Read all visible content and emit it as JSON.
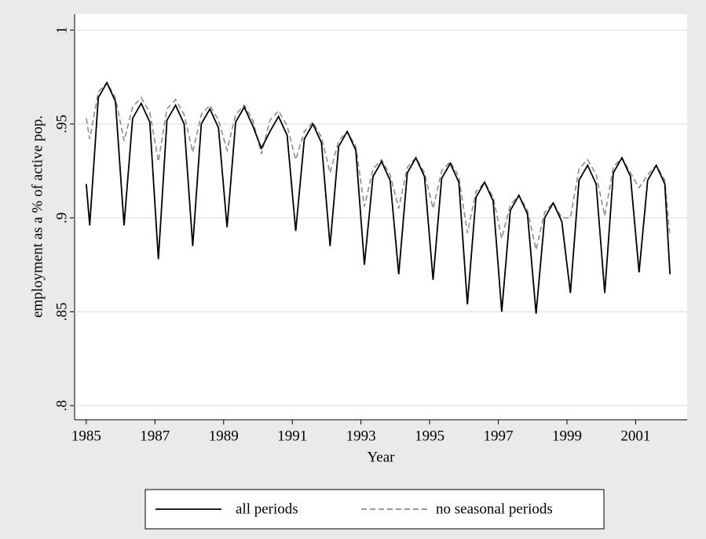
{
  "chart_data": {
    "type": "line",
    "x_label": "Year",
    "y_label": "employment as a % of active pop.",
    "x": [
      1985,
      1985.1,
      1985.35,
      1985.6,
      1985.85,
      1986.1,
      1986.35,
      1986.6,
      1986.85,
      1987.1,
      1987.35,
      1987.6,
      1987.85,
      1988.1,
      1988.35,
      1988.6,
      1988.85,
      1989.1,
      1989.35,
      1989.6,
      1989.85,
      1990.1,
      1990.35,
      1990.6,
      1990.85,
      1991.1,
      1991.35,
      1991.6,
      1991.85,
      1992.1,
      1992.35,
      1992.6,
      1992.85,
      1993.1,
      1993.35,
      1993.6,
      1993.85,
      1994.1,
      1994.35,
      1994.6,
      1994.85,
      1995.1,
      1995.35,
      1995.6,
      1995.85,
      1996.1,
      1996.35,
      1996.6,
      1996.85,
      1997.1,
      1997.35,
      1997.6,
      1997.85,
      1998.1,
      1998.35,
      1998.6,
      1998.85,
      1999.1,
      1999.35,
      1999.6,
      1999.85,
      2000.1,
      2000.35,
      2000.6,
      2000.85,
      2001.1,
      2001.35,
      2001.6,
      2001.85,
      2002
    ],
    "series": [
      {
        "name": "all periods",
        "color": "#000000",
        "linestyle": "solid",
        "values": [
          0.918,
          0.896,
          0.964,
          0.972,
          0.962,
          0.896,
          0.953,
          0.961,
          0.951,
          0.878,
          0.952,
          0.96,
          0.95,
          0.885,
          0.95,
          0.958,
          0.948,
          0.895,
          0.951,
          0.959,
          0.949,
          0.937,
          0.946,
          0.954,
          0.944,
          0.893,
          0.942,
          0.95,
          0.94,
          0.885,
          0.938,
          0.946,
          0.936,
          0.875,
          0.922,
          0.93,
          0.92,
          0.87,
          0.924,
          0.932,
          0.922,
          0.867,
          0.921,
          0.929,
          0.919,
          0.854,
          0.911,
          0.919,
          0.909,
          0.85,
          0.904,
          0.912,
          0.902,
          0.849,
          0.9,
          0.908,
          0.898,
          0.86,
          0.92,
          0.928,
          0.918,
          0.86,
          0.924,
          0.932,
          0.922,
          0.871,
          0.92,
          0.928,
          0.918,
          0.87
        ]
      },
      {
        "name": "no seasonal periods",
        "color": "#8c8c8c",
        "linestyle": "dashed",
        "values": [
          0.953,
          0.942,
          0.967,
          0.972,
          0.964,
          0.941,
          0.959,
          0.964,
          0.956,
          0.93,
          0.958,
          0.963,
          0.955,
          0.935,
          0.955,
          0.96,
          0.952,
          0.936,
          0.955,
          0.96,
          0.952,
          0.934,
          0.952,
          0.957,
          0.949,
          0.931,
          0.946,
          0.951,
          0.943,
          0.924,
          0.941,
          0.946,
          0.938,
          0.906,
          0.926,
          0.931,
          0.923,
          0.905,
          0.927,
          0.932,
          0.924,
          0.905,
          0.925,
          0.93,
          0.922,
          0.892,
          0.914,
          0.919,
          0.911,
          0.889,
          0.907,
          0.912,
          0.904,
          0.883,
          0.903,
          0.908,
          0.9,
          0.9,
          0.926,
          0.931,
          0.923,
          0.901,
          0.927,
          0.932,
          0.924,
          0.916,
          0.923,
          0.928,
          0.92,
          0.89
        ]
      }
    ],
    "xlim": [
      1984.66,
      2002.5
    ],
    "xticks": [
      1985,
      1987,
      1989,
      1991,
      1993,
      1995,
      1997,
      1999,
      2001
    ],
    "ylim": [
      0.7925,
      1.0085
    ],
    "yticks": [
      {
        "value": 0.8,
        "label": ".8"
      },
      {
        "value": 0.85,
        "label": ".85"
      },
      {
        "value": 0.9,
        "label": ".9"
      },
      {
        "value": 0.95,
        "label": ".95"
      },
      {
        "value": 1,
        "label": "1"
      }
    ],
    "grid": true,
    "legend": "bottom"
  }
}
